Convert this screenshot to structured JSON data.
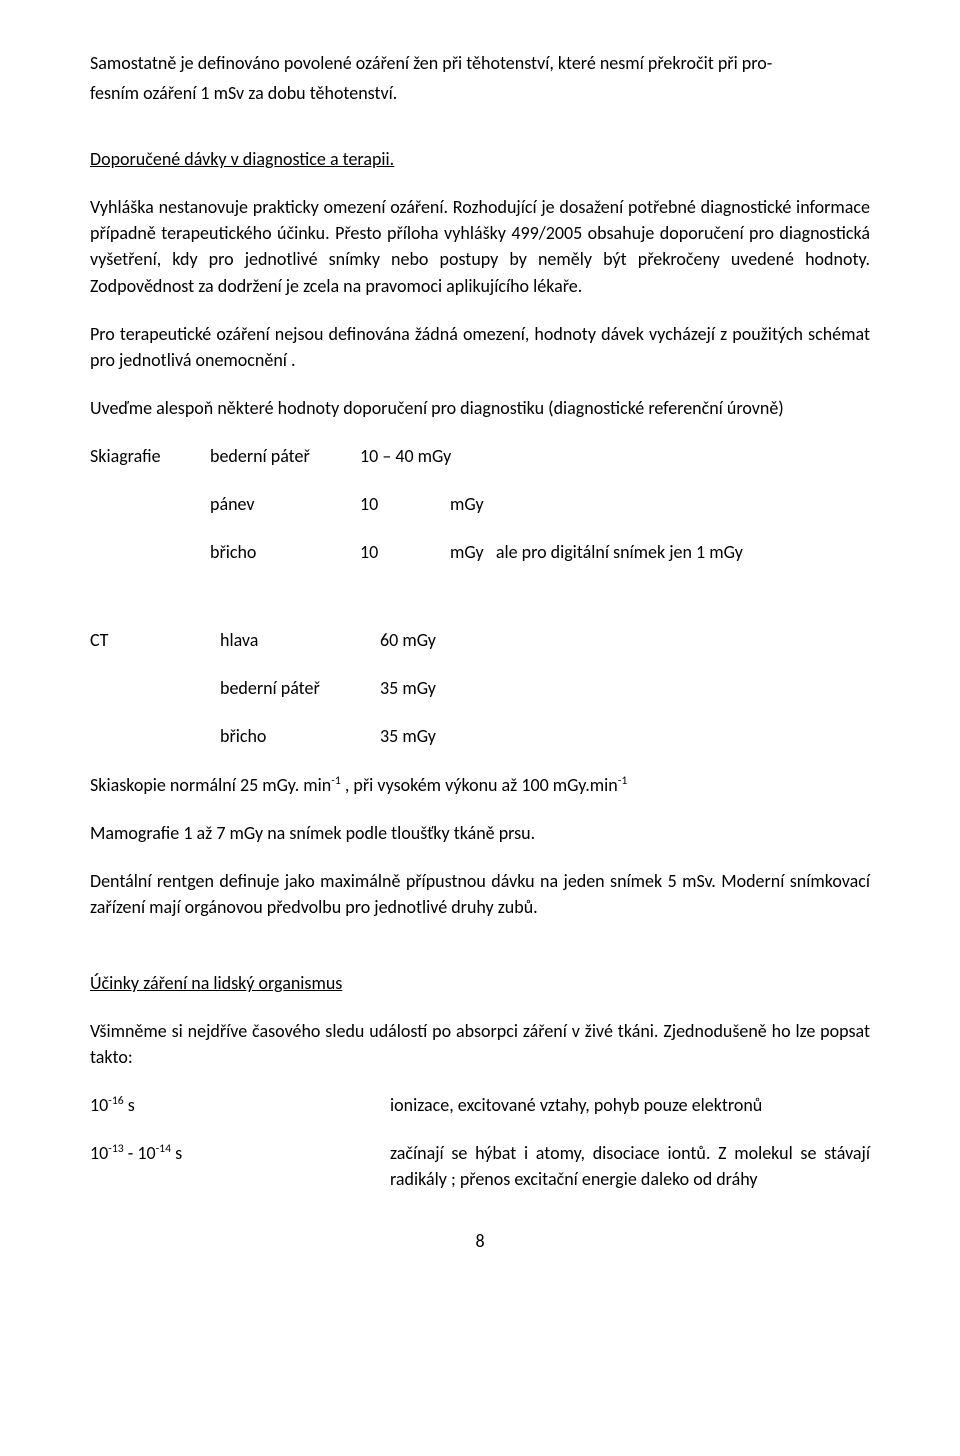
{
  "p1_a": "Samostatně je definováno povolené ozáření žen při těhotenství, které nesmí překročit při pro-",
  "p1_b": "fesním ozáření 1 mSv za dobu těhotenství.",
  "h1": "Doporučené dávky v diagnostice a terapii.",
  "p2": "Vyhláška nestanovuje prakticky omezení  ozáření. Rozhodující je dosažení potřebné diagnostické informace  případně terapeutického účinku. Přesto příloha vyhlášky 499/2005 obsahuje doporučení pro diagnostická vyšetření, kdy pro jednotlivé snímky nebo postupy by neměly být překročeny  uvedené  hodnoty. Zodpovědnost za dodržení je zcela na pravomoci aplikujícího lékaře.",
  "p3": "Pro terapeutické ozáření nejsou definována žádná omezení, hodnoty dávek vycházejí z použitých schémat pro jednotlivá onemocnění .",
  "p4": "Uveďme alespoň některé hodnoty doporučení pro diagnostiku (diagnostické referenční úrovně)",
  "skiagrafie": {
    "label": "Skiagrafie",
    "r1": {
      "site": "bederní páteř",
      "val": "10 – 40  mGy"
    },
    "r2": {
      "site": "pánev",
      "val": "10",
      "unit": "mGy"
    },
    "r3": {
      "site": "břicho",
      "val": "10",
      "unit": "mGy",
      "note": "ale pro digitální snímek jen  1 mGy"
    }
  },
  "ct": {
    "label": "CT",
    "r1": {
      "site": "hlava",
      "val": "60 mGy"
    },
    "r2": {
      "site": "bederní páteř",
      "val": "35 mGy"
    },
    "r3": {
      "site": "břicho",
      "val": "35 mGy"
    }
  },
  "skiaskopie": {
    "pre": "Skiaskopie    normální    25 mGy. min",
    "sup1": "-1",
    "mid": " ,  při vysokém výkonu  až 100 mGy.min",
    "sup2": "-1"
  },
  "mamografie": "Mamografie   1 až 7 mGy na snímek podle tloušťky tkáně prsu.",
  "dental": "Dentální rentgen definuje jako maximálně přípustnou dávku na jeden snímek 5 mSv. Moderní snímkovací zařízení mají orgánovou předvolbu pro jednotlivé druhy zubů.",
  "h2": "Účinky záření na lidský organismus",
  "p5": "Všimněme si nejdříve  časového sledu událostí po absorpci záření v živé tkáni.  Zjednodušeně ho lze popsat  takto:",
  "t1": {
    "pre": "10",
    "sup": "-16",
    "post": " s",
    "desc": "ionizace, excitované vztahy, pohyb pouze elektronů"
  },
  "t2": {
    "pre1": "10",
    "sup1": "-13",
    "mid": "  -  10",
    "sup2": "-14",
    "post": " s",
    "desc": "začínají se hýbat i atomy, disociace iontů. Z molekul se stávají radikály ; přenos excitační energie daleko od dráhy"
  },
  "page": "8"
}
